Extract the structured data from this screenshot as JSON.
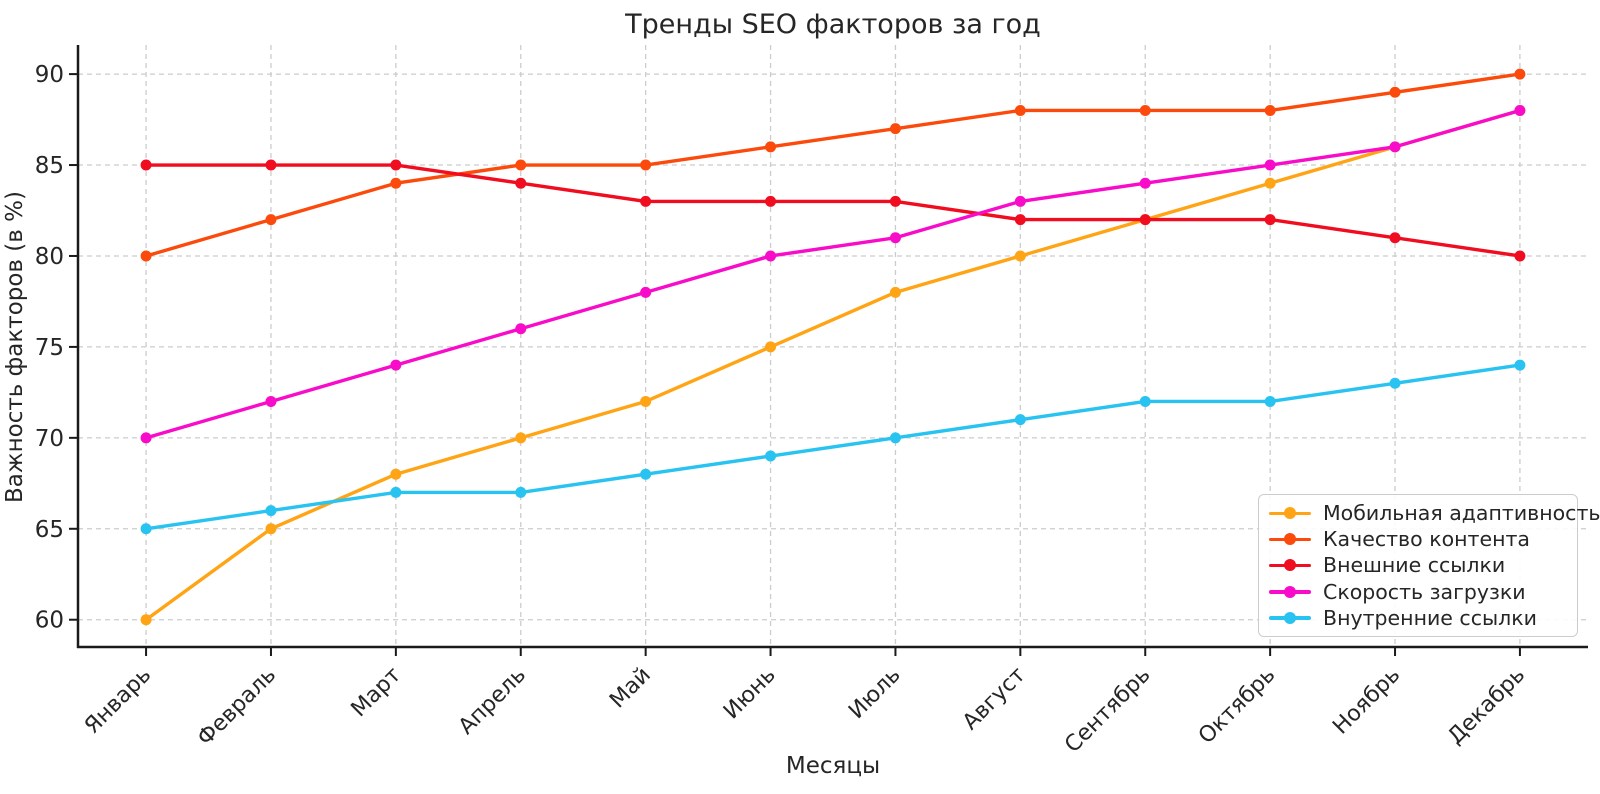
{
  "chart_data": {
    "type": "line",
    "title": "Тренды SEO факторов за год",
    "xlabel": "Месяцы",
    "ylabel": "Важность факторов (в %)",
    "categories": [
      "Январь",
      "Февраль",
      "Март",
      "Апрель",
      "Май",
      "Июнь",
      "Июль",
      "Август",
      "Сентябрь",
      "Октябрь",
      "Ноябрь",
      "Декабрь"
    ],
    "yticks": [
      60,
      65,
      70,
      75,
      80,
      85,
      90
    ],
    "ylim": [
      58.5,
      91.6
    ],
    "grid": "dashed both axes",
    "legend_position": "lower right",
    "series": [
      {
        "name": "Мобильная адаптивность",
        "color": "#FFA415",
        "values": [
          60,
          65,
          68,
          70,
          72,
          75,
          78,
          80,
          82,
          84,
          86,
          88
        ]
      },
      {
        "name": "Качество контента",
        "color": "#FB4A0C",
        "values": [
          80,
          82,
          84,
          85,
          85,
          86,
          87,
          88,
          88,
          88,
          89,
          90
        ]
      },
      {
        "name": "Внешние ссылки",
        "color": "#F00D20",
        "values": [
          85,
          85,
          85,
          84,
          83,
          83,
          83,
          82,
          82,
          82,
          81,
          80
        ]
      },
      {
        "name": "Скорость загрузки",
        "color": "#F80BC9",
        "values": [
          70,
          72,
          74,
          76,
          78,
          80,
          81,
          83,
          84,
          85,
          86,
          88
        ]
      },
      {
        "name": "Внутренние ссылки",
        "color": "#29C3F2",
        "values": [
          65,
          66,
          67,
          67,
          68,
          69,
          70,
          71,
          72,
          72,
          73,
          74
        ]
      }
    ],
    "style": {
      "grid_color": "#cccccc",
      "spine_color": "#1a1a1a",
      "text_color": "#262626"
    }
  }
}
